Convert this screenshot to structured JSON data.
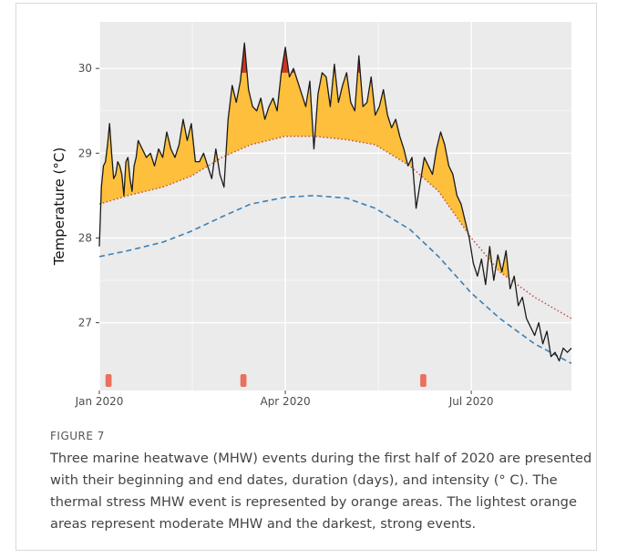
{
  "figure": {
    "label": "FIGURE 7",
    "caption": "Three marine heatwave (MHW) events during the first half of 2020 are presented with their beginning and end dates, duration (days), and intensity (° C). The thermal stress MHW event is represented by orange areas. The lightest orange areas represent moderate MHW and the darkest, strong events."
  },
  "chart_data": {
    "type": "area",
    "title": "",
    "xlabel": "",
    "ylabel": "Temperature (°C)",
    "xlim": [
      "2020-01-01",
      "2020-08-19"
    ],
    "ylim": [
      26.2,
      30.55
    ],
    "x_ticks": [
      {
        "date": "2020-01-01",
        "label": "Jan 2020"
      },
      {
        "date": "2020-04-01",
        "label": "Apr 2020"
      },
      {
        "date": "2020-07-01",
        "label": "Jul 2020"
      }
    ],
    "y_ticks": [
      27,
      28,
      29,
      30
    ],
    "grid": true,
    "colors": {
      "panel": "#ebebeb",
      "grid": "#ffffff",
      "temperature": "#1a1a1a",
      "threshold": "#c0504d",
      "climatology": "#3a7fb5",
      "moderate": "#fdbf3c",
      "strong": "#c8381f",
      "event_marker": "#e9705e"
    },
    "series": [
      {
        "kind": "temperature",
        "x": [
          "2020-01-01",
          "2020-01-02",
          "2020-01-03",
          "2020-01-04",
          "2020-01-05",
          "2020-01-06",
          "2020-01-07",
          "2020-01-08",
          "2020-01-09",
          "2020-01-10",
          "2020-01-11",
          "2020-01-12",
          "2020-01-13",
          "2020-01-14",
          "2020-01-15",
          "2020-01-16",
          "2020-01-17",
          "2020-01-18",
          "2020-01-19",
          "2020-01-20",
          "2020-01-22",
          "2020-01-24",
          "2020-01-26",
          "2020-01-28",
          "2020-01-30",
          "2020-02-01",
          "2020-02-03",
          "2020-02-05",
          "2020-02-07",
          "2020-02-09",
          "2020-02-11",
          "2020-02-13",
          "2020-02-15",
          "2020-02-17",
          "2020-02-19",
          "2020-02-21",
          "2020-02-23",
          "2020-02-25",
          "2020-02-27",
          "2020-02-29",
          "2020-03-02",
          "2020-03-04",
          "2020-03-06",
          "2020-03-08",
          "2020-03-10",
          "2020-03-12",
          "2020-03-14",
          "2020-03-16",
          "2020-03-18",
          "2020-03-20",
          "2020-03-22",
          "2020-03-24",
          "2020-03-26",
          "2020-03-28",
          "2020-03-30",
          "2020-04-01",
          "2020-04-03",
          "2020-04-05",
          "2020-04-07",
          "2020-04-09",
          "2020-04-11",
          "2020-04-13",
          "2020-04-15",
          "2020-04-17",
          "2020-04-19",
          "2020-04-21",
          "2020-04-23",
          "2020-04-25",
          "2020-04-27",
          "2020-04-29",
          "2020-05-01",
          "2020-05-03",
          "2020-05-05",
          "2020-05-07",
          "2020-05-09",
          "2020-05-11",
          "2020-05-13",
          "2020-05-15",
          "2020-05-17",
          "2020-05-19",
          "2020-05-21",
          "2020-05-23",
          "2020-05-25",
          "2020-05-27",
          "2020-05-29",
          "2020-05-31",
          "2020-06-02",
          "2020-06-04",
          "2020-06-06",
          "2020-06-08",
          "2020-06-10",
          "2020-06-12",
          "2020-06-14",
          "2020-06-16",
          "2020-06-18",
          "2020-06-20",
          "2020-06-22",
          "2020-06-24",
          "2020-06-26",
          "2020-06-28",
          "2020-06-30",
          "2020-07-02",
          "2020-07-04",
          "2020-07-06",
          "2020-07-08",
          "2020-07-10",
          "2020-07-12",
          "2020-07-14",
          "2020-07-16",
          "2020-07-18",
          "2020-07-20",
          "2020-07-22",
          "2020-07-24",
          "2020-07-26",
          "2020-07-28",
          "2020-07-30",
          "2020-08-01",
          "2020-08-03",
          "2020-08-05",
          "2020-08-07",
          "2020-08-09",
          "2020-08-11",
          "2020-08-13",
          "2020-08-15",
          "2020-08-17",
          "2020-08-19"
        ],
        "y": [
          27.9,
          28.6,
          28.85,
          28.9,
          29.1,
          29.35,
          29.0,
          28.7,
          28.75,
          28.9,
          28.85,
          28.75,
          28.5,
          28.9,
          28.95,
          28.7,
          28.55,
          28.85,
          28.95,
          29.15,
          29.05,
          28.95,
          29.0,
          28.85,
          29.05,
          28.95,
          29.25,
          29.05,
          28.95,
          29.1,
          29.4,
          29.15,
          29.35,
          28.9,
          28.9,
          29.0,
          28.85,
          28.7,
          29.05,
          28.75,
          28.6,
          29.4,
          29.8,
          29.6,
          29.85,
          30.3,
          29.75,
          29.55,
          29.5,
          29.65,
          29.4,
          29.55,
          29.65,
          29.5,
          29.95,
          30.25,
          29.9,
          30.0,
          29.85,
          29.7,
          29.55,
          29.85,
          29.05,
          29.7,
          29.95,
          29.9,
          29.55,
          30.05,
          29.6,
          29.8,
          29.95,
          29.6,
          29.5,
          30.15,
          29.55,
          29.6,
          29.9,
          29.45,
          29.55,
          29.75,
          29.45,
          29.3,
          29.4,
          29.2,
          29.05,
          28.85,
          28.95,
          28.35,
          28.65,
          28.95,
          28.85,
          28.75,
          29.05,
          29.25,
          29.1,
          28.85,
          28.75,
          28.5,
          28.4,
          28.2,
          28.0,
          27.7,
          27.55,
          27.75,
          27.45,
          27.9,
          27.5,
          27.8,
          27.6,
          27.85,
          27.4,
          27.55,
          27.2,
          27.3,
          27.05,
          26.95,
          26.85,
          27.0,
          26.75,
          26.9,
          26.6,
          26.65,
          26.55,
          26.7,
          26.65,
          26.7
        ]
      },
      {
        "kind": "threshold",
        "x": [
          "2020-01-01",
          "2020-01-15",
          "2020-02-01",
          "2020-02-15",
          "2020-03-01",
          "2020-03-15",
          "2020-04-01",
          "2020-04-15",
          "2020-05-01",
          "2020-05-15",
          "2020-06-01",
          "2020-06-15",
          "2020-07-01",
          "2020-07-15",
          "2020-08-01",
          "2020-08-19"
        ],
        "y": [
          28.4,
          28.5,
          28.6,
          28.73,
          28.95,
          29.1,
          29.2,
          29.2,
          29.16,
          29.1,
          28.85,
          28.55,
          28.0,
          27.6,
          27.3,
          27.05
        ]
      },
      {
        "kind": "climatology",
        "x": [
          "2020-01-01",
          "2020-01-15",
          "2020-02-01",
          "2020-02-15",
          "2020-03-01",
          "2020-03-15",
          "2020-04-01",
          "2020-04-15",
          "2020-05-01",
          "2020-05-15",
          "2020-06-01",
          "2020-06-15",
          "2020-07-01",
          "2020-07-15",
          "2020-08-01",
          "2020-08-19"
        ],
        "y": [
          27.78,
          27.85,
          27.95,
          28.08,
          28.25,
          28.4,
          28.48,
          28.5,
          28.47,
          28.35,
          28.1,
          27.78,
          27.35,
          27.05,
          26.75,
          26.52
        ]
      }
    ],
    "events": [
      {
        "start": "2020-01-04",
        "end": "2020-01-07"
      },
      {
        "start": "2020-03-10",
        "end": "2020-03-13"
      },
      {
        "start": "2020-06-06",
        "end": "2020-06-09"
      }
    ],
    "strong_threshold": 29.95
  }
}
